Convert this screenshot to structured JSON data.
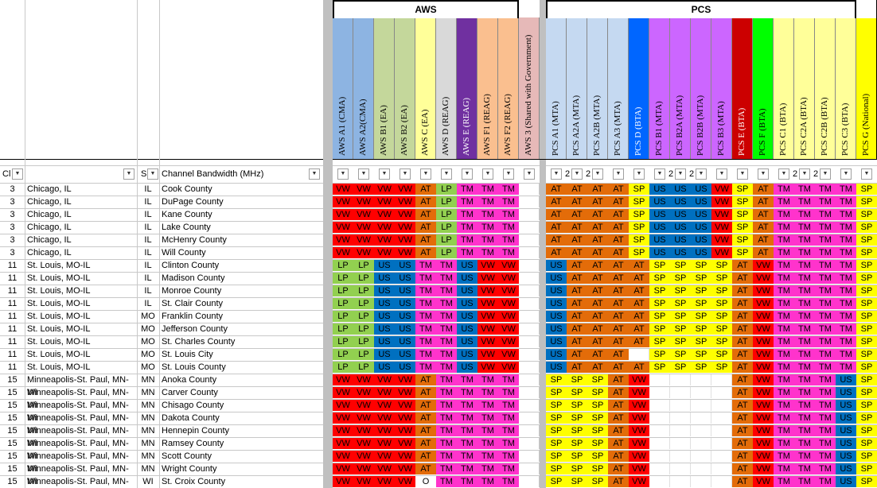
{
  "colors": {
    "VW": "#ff0000",
    "AT": "#e36c09",
    "LP": "#92d050",
    "US": "#0070c0",
    "TM": "#ff33cc",
    "SP": "#ffff00",
    "O": "#ffffff",
    "": "#ffffff"
  },
  "group_headers": {
    "aws": "AWS",
    "pcs": "PCS"
  },
  "header_cols": [
    {
      "label": "AWS A1 (CMA)",
      "bg": "#8db4e2"
    },
    {
      "label": "AWS A2(CMA)",
      "bg": "#8db4e2"
    },
    {
      "label": "AWS B1 (EA)",
      "bg": "#c4d79b"
    },
    {
      "label": "AWS B2 (EA)",
      "bg": "#c4d79b"
    },
    {
      "label": "AWS C (EA)",
      "bg": "#ffff99"
    },
    {
      "label": "AWS D (REAG)",
      "bg": "#d9d9d9"
    },
    {
      "label": "AWS E (REAG)",
      "bg": "#7030a0"
    },
    {
      "label": "AWS F1 (REAG)",
      "bg": "#fabf8f"
    },
    {
      "label": "AWS F2 (REAG)",
      "bg": "#fabf8f"
    },
    {
      "label": "AWS 3 (Shared with Government)",
      "bg": "#e6b9b8"
    },
    {
      "label": "PCS A1 (MTA)",
      "bg": "#c5d9f1"
    },
    {
      "label": "PCS A2A (MTA)",
      "bg": "#c5d9f1"
    },
    {
      "label": "PCS A2B (MTA)",
      "bg": "#c5d9f1"
    },
    {
      "label": "PCS A3 (MTA)",
      "bg": "#c5d9f1"
    },
    {
      "label": "PCS D (BTA)",
      "bg": "#0066ff"
    },
    {
      "label": "PCS B1 (MTA)",
      "bg": "#cc66ff"
    },
    {
      "label": "PCS B2A (MTA)",
      "bg": "#cc66ff"
    },
    {
      "label": "PCS B2B (MTA)",
      "bg": "#cc66ff"
    },
    {
      "label": "PCS B3 (MTA)",
      "bg": "#cc66ff"
    },
    {
      "label": "PCS E (BTA)",
      "bg": "#cc0000"
    },
    {
      "label": "PCS F (BTA)",
      "bg": "#00ff00"
    },
    {
      "label": "PCS C1 (BTA)",
      "bg": "#ffff99"
    },
    {
      "label": "PCS C2A (BTA)",
      "bg": "#ffff99"
    },
    {
      "label": "PCS C2B (BTA)",
      "bg": "#ffff99"
    },
    {
      "label": "PCS C3 (BTA)",
      "bg": "#ffff99"
    },
    {
      "label": "PCS G (National)",
      "bg": "#ffff00"
    }
  ],
  "filter_row": {
    "col_a": "Cl",
    "col_c": "S",
    "col_d": "Channel Bandwidth (MHz)",
    "pcs_twos": [
      "2",
      "2",
      "2",
      "2",
      "2",
      "2"
    ]
  },
  "rows": [
    {
      "n": "3",
      "market": "Chicago, IL",
      "st": "IL",
      "county": "Cook County",
      "aws": [
        "VW",
        "VW",
        "VW",
        "VW",
        "AT",
        "LP",
        "TM",
        "TM",
        "TM"
      ],
      "pcs": [
        "AT",
        "AT",
        "AT",
        "AT",
        "SP",
        "US",
        "US",
        "US",
        "VW",
        "SP",
        "AT",
        "TM",
        "TM",
        "TM",
        "TM",
        "SP"
      ]
    },
    {
      "n": "3",
      "market": "Chicago, IL",
      "st": "IL",
      "county": "DuPage County",
      "aws": [
        "VW",
        "VW",
        "VW",
        "VW",
        "AT",
        "LP",
        "TM",
        "TM",
        "TM"
      ],
      "pcs": [
        "AT",
        "AT",
        "AT",
        "AT",
        "SP",
        "US",
        "US",
        "US",
        "VW",
        "SP",
        "AT",
        "TM",
        "TM",
        "TM",
        "TM",
        "SP"
      ]
    },
    {
      "n": "3",
      "market": "Chicago, IL",
      "st": "IL",
      "county": "Kane County",
      "aws": [
        "VW",
        "VW",
        "VW",
        "VW",
        "AT",
        "LP",
        "TM",
        "TM",
        "TM"
      ],
      "pcs": [
        "AT",
        "AT",
        "AT",
        "AT",
        "SP",
        "US",
        "US",
        "US",
        "VW",
        "SP",
        "AT",
        "TM",
        "TM",
        "TM",
        "TM",
        "SP"
      ]
    },
    {
      "n": "3",
      "market": "Chicago, IL",
      "st": "IL",
      "county": "Lake County",
      "aws": [
        "VW",
        "VW",
        "VW",
        "VW",
        "AT",
        "LP",
        "TM",
        "TM",
        "TM"
      ],
      "pcs": [
        "AT",
        "AT",
        "AT",
        "AT",
        "SP",
        "US",
        "US",
        "US",
        "VW",
        "SP",
        "AT",
        "TM",
        "TM",
        "TM",
        "TM",
        "SP"
      ]
    },
    {
      "n": "3",
      "market": "Chicago, IL",
      "st": "IL",
      "county": "McHenry County",
      "aws": [
        "VW",
        "VW",
        "VW",
        "VW",
        "AT",
        "LP",
        "TM",
        "TM",
        "TM"
      ],
      "pcs": [
        "AT",
        "AT",
        "AT",
        "AT",
        "SP",
        "US",
        "US",
        "US",
        "VW",
        "SP",
        "AT",
        "TM",
        "TM",
        "TM",
        "TM",
        "SP"
      ]
    },
    {
      "n": "3",
      "market": "Chicago, IL",
      "st": "IL",
      "county": "Will County",
      "aws": [
        "VW",
        "VW",
        "VW",
        "VW",
        "AT",
        "LP",
        "TM",
        "TM",
        "TM"
      ],
      "pcs": [
        "AT",
        "AT",
        "AT",
        "AT",
        "SP",
        "US",
        "US",
        "US",
        "VW",
        "SP",
        "AT",
        "TM",
        "TM",
        "TM",
        "TM",
        "SP"
      ]
    },
    {
      "n": "11",
      "market": "St. Louis, MO-IL",
      "st": "IL",
      "county": "Clinton County",
      "aws": [
        "LP",
        "LP",
        "US",
        "US",
        "TM",
        "TM",
        "US",
        "VW",
        "VW"
      ],
      "pcs": [
        "US",
        "AT",
        "AT",
        "AT",
        "AT",
        "SP",
        "SP",
        "SP",
        "SP",
        "AT",
        "VW",
        "TM",
        "TM",
        "TM",
        "TM",
        "SP"
      ]
    },
    {
      "n": "11",
      "market": "St. Louis, MO-IL",
      "st": "IL",
      "county": "Madison County",
      "aws": [
        "LP",
        "LP",
        "US",
        "US",
        "TM",
        "TM",
        "US",
        "VW",
        "VW"
      ],
      "pcs": [
        "US",
        "AT",
        "AT",
        "AT",
        "AT",
        "SP",
        "SP",
        "SP",
        "SP",
        "AT",
        "VW",
        "TM",
        "TM",
        "TM",
        "TM",
        "SP"
      ]
    },
    {
      "n": "11",
      "market": "St. Louis, MO-IL",
      "st": "IL",
      "county": "Monroe County",
      "aws": [
        "LP",
        "LP",
        "US",
        "US",
        "TM",
        "TM",
        "US",
        "VW",
        "VW"
      ],
      "pcs": [
        "US",
        "AT",
        "AT",
        "AT",
        "AT",
        "SP",
        "SP",
        "SP",
        "SP",
        "AT",
        "VW",
        "TM",
        "TM",
        "TM",
        "TM",
        "SP"
      ]
    },
    {
      "n": "11",
      "market": "St. Louis, MO-IL",
      "st": "IL",
      "county": "St. Clair County",
      "aws": [
        "LP",
        "LP",
        "US",
        "US",
        "TM",
        "TM",
        "US",
        "VW",
        "VW"
      ],
      "pcs": [
        "US",
        "AT",
        "AT",
        "AT",
        "AT",
        "SP",
        "SP",
        "SP",
        "SP",
        "AT",
        "VW",
        "TM",
        "TM",
        "TM",
        "TM",
        "SP"
      ]
    },
    {
      "n": "11",
      "market": "St. Louis, MO-IL",
      "st": "MO",
      "county": "Franklin County",
      "aws": [
        "LP",
        "LP",
        "US",
        "US",
        "TM",
        "TM",
        "US",
        "VW",
        "VW"
      ],
      "pcs": [
        "US",
        "AT",
        "AT",
        "AT",
        "AT",
        "SP",
        "SP",
        "SP",
        "SP",
        "AT",
        "VW",
        "TM",
        "TM",
        "TM",
        "TM",
        "SP"
      ]
    },
    {
      "n": "11",
      "market": "St. Louis, MO-IL",
      "st": "MO",
      "county": "Jefferson County",
      "aws": [
        "LP",
        "LP",
        "US",
        "US",
        "TM",
        "TM",
        "US",
        "VW",
        "VW"
      ],
      "pcs": [
        "US",
        "AT",
        "AT",
        "AT",
        "AT",
        "SP",
        "SP",
        "SP",
        "SP",
        "AT",
        "VW",
        "TM",
        "TM",
        "TM",
        "TM",
        "SP"
      ]
    },
    {
      "n": "11",
      "market": "St. Louis, MO-IL",
      "st": "MO",
      "county": "St. Charles County",
      "aws": [
        "LP",
        "LP",
        "US",
        "US",
        "TM",
        "TM",
        "US",
        "VW",
        "VW"
      ],
      "pcs": [
        "US",
        "AT",
        "AT",
        "AT",
        "AT",
        "SP",
        "SP",
        "SP",
        "SP",
        "AT",
        "VW",
        "TM",
        "TM",
        "TM",
        "TM",
        "SP"
      ]
    },
    {
      "n": "11",
      "market": "St. Louis, MO-IL",
      "st": "MO",
      "county": "St. Louis City",
      "aws": [
        "LP",
        "LP",
        "US",
        "US",
        "TM",
        "TM",
        "US",
        "VW",
        "VW"
      ],
      "pcs": [
        "US",
        "AT",
        "AT",
        "AT",
        "",
        "SP",
        "SP",
        "SP",
        "SP",
        "AT",
        "VW",
        "TM",
        "TM",
        "TM",
        "TM",
        "SP"
      ]
    },
    {
      "n": "11",
      "market": "St. Louis, MO-IL",
      "st": "MO",
      "county": "St. Louis County",
      "aws": [
        "LP",
        "LP",
        "US",
        "US",
        "TM",
        "TM",
        "US",
        "VW",
        "VW"
      ],
      "pcs": [
        "US",
        "AT",
        "AT",
        "AT",
        "AT",
        "SP",
        "SP",
        "SP",
        "SP",
        "AT",
        "VW",
        "TM",
        "TM",
        "TM",
        "TM",
        "SP"
      ]
    },
    {
      "n": "15",
      "market": "Minneapolis-St. Paul, MN-WI",
      "st": "MN",
      "county": "Anoka County",
      "aws": [
        "VW",
        "VW",
        "VW",
        "VW",
        "AT",
        "TM",
        "TM",
        "TM",
        "TM"
      ],
      "pcs": [
        "SP",
        "SP",
        "SP",
        "AT",
        "VW",
        "",
        "",
        "",
        "",
        "AT",
        "VW",
        "TM",
        "TM",
        "TM",
        "US",
        "SP"
      ]
    },
    {
      "n": "15",
      "market": "Minneapolis-St. Paul, MN-WI",
      "st": "MN",
      "county": "Carver County",
      "aws": [
        "VW",
        "VW",
        "VW",
        "VW",
        "AT",
        "TM",
        "TM",
        "TM",
        "TM"
      ],
      "pcs": [
        "SP",
        "SP",
        "SP",
        "AT",
        "VW",
        "",
        "",
        "",
        "",
        "AT",
        "VW",
        "TM",
        "TM",
        "TM",
        "US",
        "SP"
      ]
    },
    {
      "n": "15",
      "market": "Minneapolis-St. Paul, MN-WI",
      "st": "MN",
      "county": "Chisago County",
      "aws": [
        "VW",
        "VW",
        "VW",
        "VW",
        "AT",
        "TM",
        "TM",
        "TM",
        "TM"
      ],
      "pcs": [
        "SP",
        "SP",
        "SP",
        "AT",
        "VW",
        "",
        "",
        "",
        "",
        "AT",
        "VW",
        "TM",
        "TM",
        "TM",
        "US",
        "SP"
      ]
    },
    {
      "n": "15",
      "market": "Minneapolis-St. Paul, MN-WI",
      "st": "MN",
      "county": "Dakota County",
      "aws": [
        "VW",
        "VW",
        "VW",
        "VW",
        "AT",
        "TM",
        "TM",
        "TM",
        "TM"
      ],
      "pcs": [
        "SP",
        "SP",
        "SP",
        "AT",
        "VW",
        "",
        "",
        "",
        "",
        "AT",
        "VW",
        "TM",
        "TM",
        "TM",
        "US",
        "SP"
      ]
    },
    {
      "n": "15",
      "market": "Minneapolis-St. Paul, MN-WI",
      "st": "MN",
      "county": "Hennepin County",
      "aws": [
        "VW",
        "VW",
        "VW",
        "VW",
        "AT",
        "TM",
        "TM",
        "TM",
        "TM"
      ],
      "pcs": [
        "SP",
        "SP",
        "SP",
        "AT",
        "VW",
        "",
        "",
        "",
        "",
        "AT",
        "VW",
        "TM",
        "TM",
        "TM",
        "US",
        "SP"
      ]
    },
    {
      "n": "15",
      "market": "Minneapolis-St. Paul, MN-WI",
      "st": "MN",
      "county": "Ramsey County",
      "aws": [
        "VW",
        "VW",
        "VW",
        "VW",
        "AT",
        "TM",
        "TM",
        "TM",
        "TM"
      ],
      "pcs": [
        "SP",
        "SP",
        "SP",
        "AT",
        "VW",
        "",
        "",
        "",
        "",
        "AT",
        "VW",
        "TM",
        "TM",
        "TM",
        "US",
        "SP"
      ]
    },
    {
      "n": "15",
      "market": "Minneapolis-St. Paul, MN-WI",
      "st": "MN",
      "county": "Scott County",
      "aws": [
        "VW",
        "VW",
        "VW",
        "VW",
        "AT",
        "TM",
        "TM",
        "TM",
        "TM"
      ],
      "pcs": [
        "SP",
        "SP",
        "SP",
        "AT",
        "VW",
        "",
        "",
        "",
        "",
        "AT",
        "VW",
        "TM",
        "TM",
        "TM",
        "US",
        "SP"
      ]
    },
    {
      "n": "15",
      "market": "Minneapolis-St. Paul, MN-WI",
      "st": "MN",
      "county": "Wright County",
      "aws": [
        "VW",
        "VW",
        "VW",
        "VW",
        "AT",
        "TM",
        "TM",
        "TM",
        "TM"
      ],
      "pcs": [
        "SP",
        "SP",
        "SP",
        "AT",
        "VW",
        "",
        "",
        "",
        "",
        "AT",
        "VW",
        "TM",
        "TM",
        "TM",
        "US",
        "SP"
      ]
    },
    {
      "n": "15",
      "market": "Minneapolis-St. Paul, MN-WI",
      "st": "WI",
      "county": "St. Croix County",
      "aws": [
        "VW",
        "VW",
        "VW",
        "VW",
        "O",
        "TM",
        "TM",
        "TM",
        "TM"
      ],
      "pcs": [
        "SP",
        "SP",
        "SP",
        "AT",
        "VW",
        "",
        "",
        "",
        "",
        "AT",
        "VW",
        "TM",
        "TM",
        "TM",
        "US",
        "SP"
      ]
    }
  ]
}
